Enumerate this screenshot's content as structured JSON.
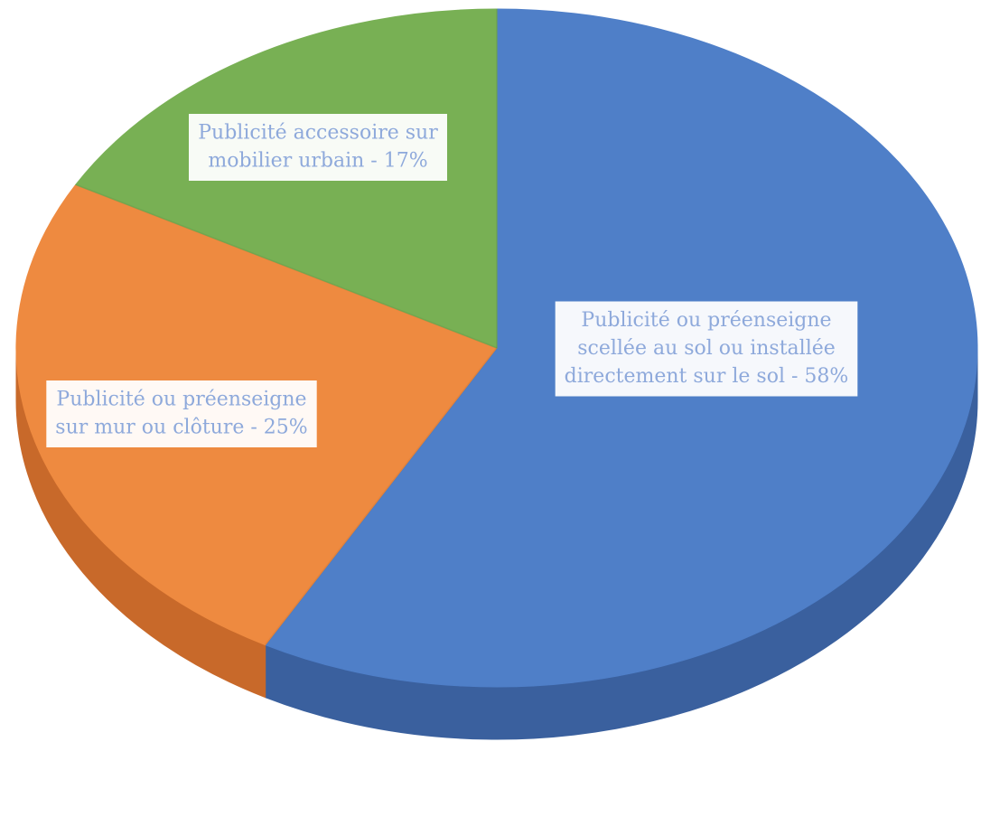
{
  "chart_data": {
    "type": "pie",
    "style": "3d",
    "title": "",
    "slices": [
      {
        "label_lines": [
          "Publicité ou préenseigne",
          "scellée au sol ou installée",
          "directement sur le sol - 58%"
        ],
        "value": 58,
        "color": "#4f7fc8",
        "side_color": "#3a609e"
      },
      {
        "label_lines": [
          "Publicité ou préenseigne",
          "sur mur ou clôture - 25%"
        ],
        "value": 25,
        "color": "#ee8a40",
        "side_color": "#c8692a"
      },
      {
        "label_lines": [
          "Publicité accessoire sur",
          "mobilier urbain - 17%"
        ],
        "value": 17,
        "color": "#78b054",
        "side_color": "#5c8c3e"
      }
    ],
    "label_text_color": "#8ea9db",
    "label_box_color": "#ffffff"
  }
}
